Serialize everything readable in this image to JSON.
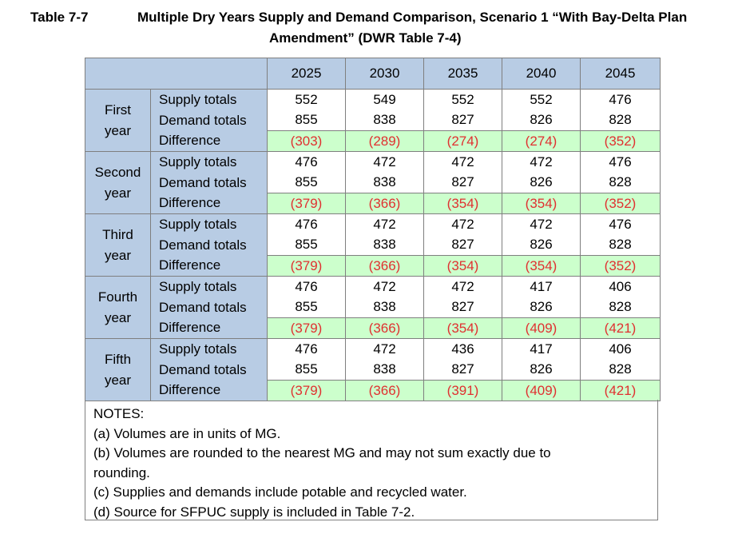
{
  "caption": {
    "number": "Table 7-7",
    "title_line1": "Multiple Dry Years Supply and Demand Comparison, Scenario 1 “With Bay-Delta Plan",
    "title_line2": "Amendment” (DWR Table 7-4)"
  },
  "table": {
    "years": [
      "2025",
      "2030",
      "2035",
      "2040",
      "2045"
    ],
    "row_labels": {
      "supply": "Supply totals",
      "demand": "Demand totals",
      "difference": "Difference"
    },
    "groups": [
      {
        "label_line1": "First",
        "label_line2": "year",
        "supply": [
          "552",
          "549",
          "552",
          "552",
          "476"
        ],
        "demand": [
          "855",
          "838",
          "827",
          "826",
          "828"
        ],
        "difference": [
          "(303)",
          "(289)",
          "(274)",
          "(274)",
          "(352)"
        ]
      },
      {
        "label_line1": "Second",
        "label_line2": "year",
        "supply": [
          "476",
          "472",
          "472",
          "472",
          "476"
        ],
        "demand": [
          "855",
          "838",
          "827",
          "826",
          "828"
        ],
        "difference": [
          "(379)",
          "(366)",
          "(354)",
          "(354)",
          "(352)"
        ]
      },
      {
        "label_line1": "Third",
        "label_line2": "year",
        "supply": [
          "476",
          "472",
          "472",
          "472",
          "476"
        ],
        "demand": [
          "855",
          "838",
          "827",
          "826",
          "828"
        ],
        "difference": [
          "(379)",
          "(366)",
          "(354)",
          "(354)",
          "(352)"
        ]
      },
      {
        "label_line1": "Fourth",
        "label_line2": "year",
        "supply": [
          "476",
          "472",
          "472",
          "417",
          "406"
        ],
        "demand": [
          "855",
          "838",
          "827",
          "826",
          "828"
        ],
        "difference": [
          "(379)",
          "(366)",
          "(354)",
          "(409)",
          "(421)"
        ]
      },
      {
        "label_line1": "Fifth",
        "label_line2": "year",
        "supply": [
          "476",
          "472",
          "436",
          "417",
          "406"
        ],
        "demand": [
          "855",
          "838",
          "827",
          "826",
          "828"
        ],
        "difference": [
          "(379)",
          "(366)",
          "(391)",
          "(409)",
          "(421)"
        ]
      }
    ]
  },
  "notes": {
    "heading": "NOTES:",
    "items": [
      "(a) Volumes are in units of MG.",
      "(b) Volumes are rounded to the nearest MG and may not sum exactly due to",
      "rounding.",
      "(c) Supplies and demands include potable and recycled water.",
      "(d) Source for SFPUC supply is included in Table 7-2."
    ]
  },
  "colors": {
    "header_fill": "#b8cce4",
    "difference_fill": "#ccffcc",
    "negative_text": "#e03030",
    "border": "#7f7f7f"
  }
}
